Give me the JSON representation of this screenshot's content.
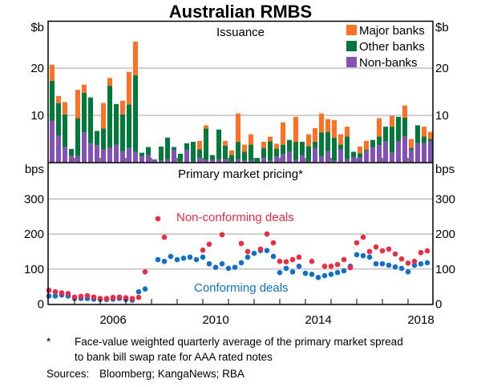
{
  "title": "Australian RMBS",
  "footnote": {
    "marker": "*",
    "line1": "Face-value weighted quarterly average of the primary market spread",
    "line2": "to bank bill swap rate for AAA rated notes",
    "sources_label": "Sources:",
    "sources": "Bloomberg; KangaNews; RBA"
  },
  "chart_data": [
    {
      "type": "bar",
      "stacked": true,
      "title": "Issuance",
      "ylabel": "$b",
      "ylim": [
        0,
        30
      ],
      "yticks": [
        "10",
        "20"
      ],
      "ytick_values": [
        10,
        20
      ],
      "x_start": "2004Q1",
      "x_ticks": [
        "2006",
        "2010",
        "2014",
        "2018"
      ],
      "legend_position": "top-right",
      "colors": {
        "Major banks": "#ff7124",
        "Other banks": "#00793a",
        "Non-banks": "#8451b4"
      },
      "series": [
        {
          "name": "Non-banks",
          "values": [
            8.9,
            5.7,
            3.3,
            1.4,
            1.4,
            6.4,
            4.1,
            3.7,
            2.8,
            3.1,
            3.8,
            2.4,
            3.1,
            2.3,
            1.3,
            1.6,
            0.7,
            0.4,
            0.7,
            2.7,
            0.2,
            2.7,
            0.2,
            1.0,
            0.6,
            0.6,
            0.7,
            0.7,
            0.2,
            0.7,
            0.4,
            0.4,
            0.1,
            1.1,
            0.4,
            1.3,
            1.8,
            2.3,
            0.6,
            1.6,
            0.2,
            3.1,
            1.3,
            2.4,
            0.4,
            2.8,
            0.7,
            1.1,
            1.1,
            2.4,
            3.3,
            3.7,
            4.5,
            2.1,
            4.5,
            5.6,
            2.7,
            4.1,
            4.1,
            4.5
          ]
        },
        {
          "name": "Other banks",
          "values": [
            8.4,
            6.9,
            6.9,
            1.5,
            8.0,
            8.4,
            9.7,
            3.0,
            4.4,
            13.2,
            8.6,
            7.8,
            9.2,
            16.2,
            0.8,
            1.7,
            0.0,
            3.0,
            4.6,
            0.6,
            1.7,
            1.4,
            4.2,
            1.8,
            6.6,
            1.0,
            6.3,
            2.9,
            1.4,
            3.7,
            1.9,
            3.4,
            0.9,
            2.0,
            4.1,
            1.7,
            2.0,
            2.5,
            3.8,
            2.8,
            3.3,
            1.3,
            5.1,
            4.1,
            4.9,
            1.0,
            4.8,
            1.2,
            0.9,
            0.3,
            1.5,
            1.8,
            3.1,
            5.5,
            5.2,
            3.9,
            0.4,
            3.8,
            1.4,
            0.5
          ]
        },
        {
          "name": "Major banks",
          "values": [
            3.4,
            1.5,
            2.6,
            0,
            6.0,
            1.7,
            0,
            0,
            5.4,
            1.6,
            0,
            2.9,
            6.9,
            7.1,
            0,
            0,
            0,
            0,
            0,
            0,
            0,
            0,
            0,
            1.8,
            0.7,
            0,
            0,
            1.0,
            1.0,
            6.0,
            1.5,
            2.2,
            0,
            1.3,
            1.0,
            1.0,
            4.7,
            0,
            5.3,
            0,
            2.5,
            2.9,
            4.0,
            2.7,
            3.7,
            2.2,
            2.1,
            0,
            1.4,
            1.9,
            0,
            3.9,
            0,
            2.3,
            0,
            2.6,
            1.9,
            0,
            2.1,
            1.5
          ]
        }
      ]
    },
    {
      "type": "scatter",
      "title": "Primary market pricing*",
      "ylabel": "bps",
      "ylim": [
        0,
        400
      ],
      "yticks": [
        "0",
        "100",
        "200",
        "300"
      ],
      "ytick_values": [
        0,
        100,
        200,
        300
      ],
      "x_start": "2004Q1",
      "x_ticks": [
        "2006",
        "2010",
        "2014",
        "2018"
      ],
      "colors": {
        "Non-conforming deals": "#ee2b43",
        "Conforming deals": "#0f70c9"
      },
      "series": [
        {
          "name": "Non-conforming deals",
          "values": [
            39,
            35,
            32,
            30,
            20,
            22,
            24,
            20,
            16,
            16,
            19,
            20,
            18,
            16,
            19,
            92,
            null,
            244,
            191,
            null,
            null,
            null,
            null,
            null,
            154,
            171,
            null,
            198,
            null,
            null,
            173,
            150,
            null,
            157,
            200,
            175,
            122,
            121,
            127,
            134,
            null,
            122,
            null,
            108,
            108,
            113,
            127,
            104,
            175,
            191,
            150,
            163,
            152,
            157,
            143,
            129,
            117,
            122,
            147,
            152
          ]
        },
        {
          "name": "Conforming deals",
          "values": [
            23,
            23,
            26,
            23,
            16,
            16,
            16,
            14,
            13,
            13,
            14,
            16,
            13,
            11,
            35,
            43,
            null,
            127,
            122,
            136,
            127,
            131,
            134,
            127,
            134,
            115,
            105,
            115,
            102,
            105,
            118,
            134,
            145,
            153,
            153,
            136,
            90,
            102,
            92,
            108,
            88,
            85,
            76,
            81,
            85,
            90,
            95,
            108,
            141,
            138,
            134,
            115,
            115,
            111,
            106,
            102,
            92,
            111,
            115,
            118
          ]
        }
      ]
    }
  ]
}
